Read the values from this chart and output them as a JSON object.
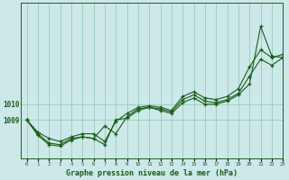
{
  "title": "Graphe pression niveau de la mer (hPa)",
  "bg_color": "#cce8e8",
  "grid_color": "#99ccbb",
  "line_color": "#1a5c1a",
  "xlim": [
    -0.5,
    23
  ],
  "ylim": [
    1006.5,
    1016.5
  ],
  "yticks": [
    1009,
    1010
  ],
  "xticks": [
    0,
    1,
    2,
    3,
    4,
    5,
    6,
    7,
    8,
    9,
    10,
    11,
    12,
    13,
    14,
    15,
    16,
    17,
    18,
    19,
    20,
    21,
    22,
    23
  ],
  "series": {
    "line1": [
      1009.0,
      1008.2,
      1007.8,
      1007.6,
      1007.9,
      1008.1,
      1008.1,
      1007.6,
      1008.9,
      1009.4,
      1009.8,
      1009.9,
      1009.8,
      1009.6,
      1010.5,
      1010.8,
      1010.4,
      1010.3,
      1010.5,
      1011.0,
      1012.4,
      1013.5,
      1013.0,
      1013.2
    ],
    "line2": [
      1009.0,
      1008.1,
      1007.5,
      1007.4,
      1007.8,
      1007.9,
      1007.8,
      1008.6,
      1008.1,
      1009.2,
      1009.7,
      1009.8,
      1009.7,
      1009.5,
      1010.3,
      1010.6,
      1010.2,
      1010.1,
      1010.3,
      1010.7,
      1011.8,
      1012.9,
      1012.5,
      1013.0
    ],
    "line3": [
      1009.0,
      1008.0,
      1007.4,
      1007.3,
      1007.7,
      1007.9,
      1007.8,
      1007.4,
      1009.0,
      1009.1,
      1009.6,
      1009.8,
      1009.6,
      1009.4,
      1010.1,
      1010.4,
      1010.0,
      1010.0,
      1010.2,
      1010.6,
      1011.3,
      1015.0,
      1013.1,
      1013.0
    ]
  }
}
